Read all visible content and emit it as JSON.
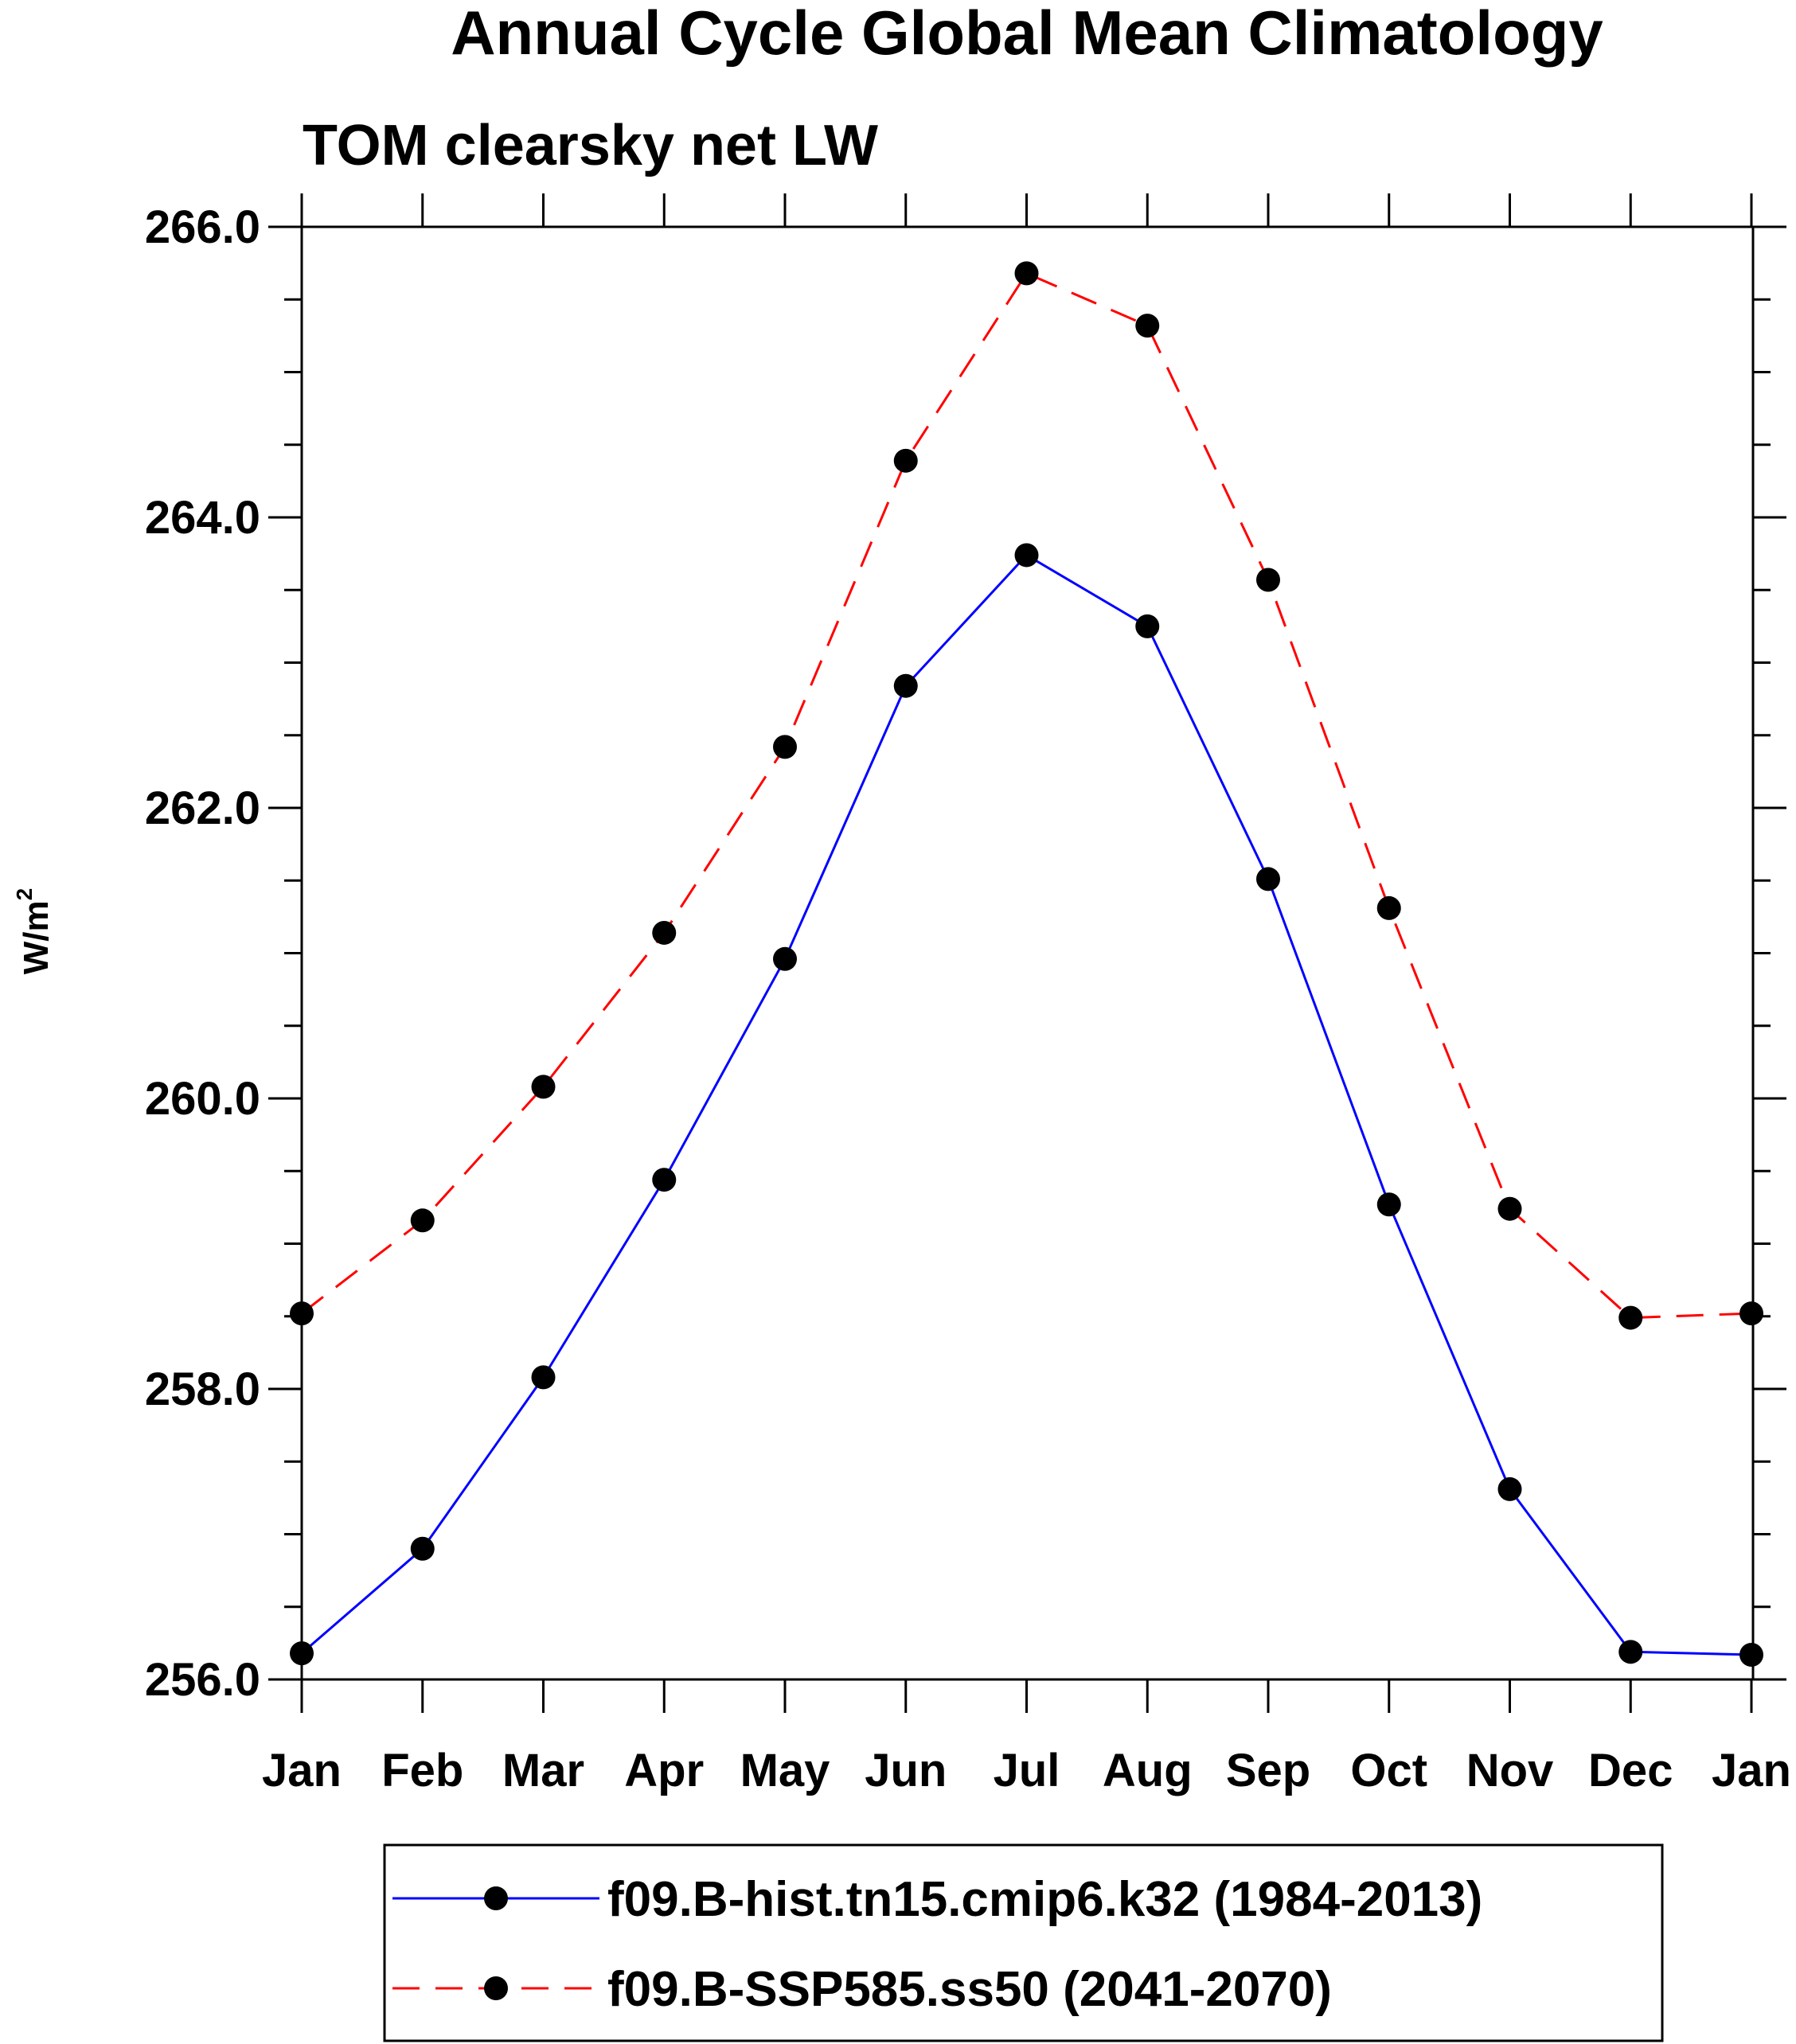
{
  "chart_data": {
    "type": "line",
    "title": "Annual Cycle Global Mean Climatology",
    "subtitle": "TOM clearsky net LW",
    "xlabel": "",
    "ylabel": "W/m",
    "ylabel_superscript": "2",
    "categories": [
      "Jan",
      "Feb",
      "Mar",
      "Apr",
      "May",
      "Jun",
      "Jul",
      "Aug",
      "Sep",
      "Oct",
      "Nov",
      "Dec",
      "Jan"
    ],
    "ylim": [
      256.0,
      266.0
    ],
    "yticks": [
      "256.0",
      "258.0",
      "260.0",
      "262.0",
      "264.0",
      "266.0"
    ],
    "grid": false,
    "legend_position": "bottom",
    "series": [
      {
        "name": "f09.B-hist.tn15.cmip6.k32 (1984-2013)",
        "color": "#0000ff",
        "dash": "solid",
        "marker": "filled-circle",
        "values": [
          256.18,
          256.9,
          258.08,
          259.44,
          260.96,
          262.84,
          263.74,
          263.25,
          261.51,
          259.27,
          257.31,
          256.19,
          256.17
        ]
      },
      {
        "name": "f09.B-SSP585.ss50 (2041-2070)",
        "color": "#ff0000",
        "dash": "dashed",
        "marker": "filled-circle",
        "values": [
          258.52,
          259.16,
          260.08,
          261.14,
          262.42,
          264.39,
          265.68,
          265.32,
          263.57,
          261.31,
          259.24,
          258.49,
          258.52
        ]
      }
    ]
  }
}
